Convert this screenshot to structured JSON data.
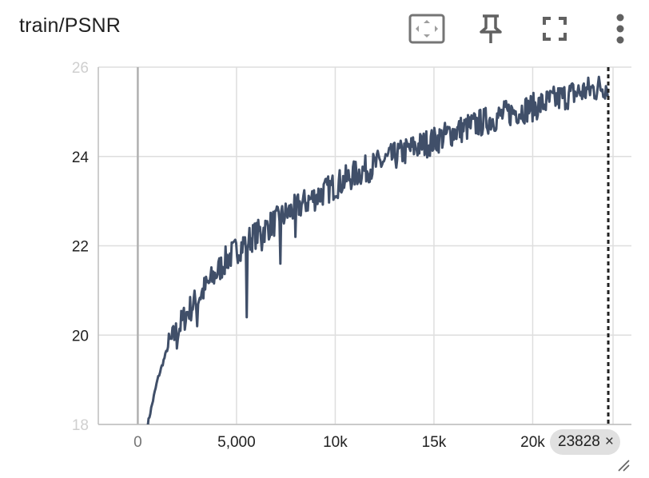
{
  "card": {
    "title": "train/PSNR",
    "toolbar": {
      "fit_icon": "fit-domain-icon",
      "pin_icon": "pin-icon",
      "fullscreen_icon": "fullscreen-icon",
      "more_icon": "more-vert-icon"
    },
    "step_badge": {
      "value": "23828",
      "close_glyph": "×"
    },
    "colors": {
      "line": "#404f69",
      "grid": "#dedede",
      "axis": "#9e9e9e",
      "cursor": "#212121"
    }
  },
  "chart_data": {
    "type": "line",
    "title": "train/PSNR",
    "xlabel": "",
    "ylabel": "",
    "xlim": [
      -2000,
      25000
    ],
    "ylim": [
      18,
      26
    ],
    "x_ticks": [
      0,
      5000,
      10000,
      15000,
      20000
    ],
    "x_tick_labels": [
      "0",
      "5,000",
      "10k",
      "15k",
      "20k"
    ],
    "y_ticks": [
      18,
      20,
      22,
      24,
      26
    ],
    "y_tick_labels": [
      "18",
      "20",
      "22",
      "24",
      "26"
    ],
    "grid": true,
    "cursor_step": 23828,
    "series": [
      {
        "color": "#404f69",
        "x": [
          500,
          1000,
          1500,
          2000,
          2500,
          3000,
          3500,
          4000,
          4500,
          5000,
          5500,
          6000,
          6500,
          7000,
          7500,
          8000,
          9000,
          10000,
          11000,
          12000,
          13000,
          14000,
          15000,
          16000,
          17000,
          18000,
          19000,
          20000,
          21000,
          22000,
          23000,
          23800
        ],
        "y": [
          18.0,
          19.0,
          19.7,
          20.1,
          20.5,
          20.8,
          21.1,
          21.4,
          21.7,
          21.9,
          22.1,
          22.25,
          22.4,
          22.55,
          22.7,
          22.85,
          23.1,
          23.35,
          23.6,
          23.8,
          24.0,
          24.2,
          24.35,
          24.55,
          24.7,
          24.85,
          25.0,
          25.1,
          25.25,
          25.4,
          25.5,
          25.6
        ],
        "dips": [
          [
            5500,
            20.4
          ],
          [
            3000,
            20.2
          ],
          [
            2000,
            19.7
          ],
          [
            6300,
            21.9
          ],
          [
            7200,
            21.6
          ],
          [
            8000,
            22.2
          ]
        ]
      }
    ]
  }
}
